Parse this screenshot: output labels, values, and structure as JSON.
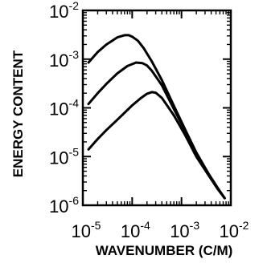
{
  "chart_data": {
    "type": "line",
    "title": "",
    "xlabel": "WAVENUMBER (C/M)",
    "ylabel": "ENERGY CONTENT",
    "xscale": "log",
    "yscale": "log",
    "xlim": [
      1e-05,
      0.01
    ],
    "ylim": [
      1e-06,
      0.01
    ],
    "grid": false,
    "x_ticks": [
      {
        "base": "10",
        "exp": "-5",
        "value": 1e-05
      },
      {
        "base": "10",
        "exp": "-4",
        "value": 0.0001
      },
      {
        "base": "10",
        "exp": "-3",
        "value": 0.001
      },
      {
        "base": "10",
        "exp": "-2",
        "value": 0.01
      }
    ],
    "y_ticks": [
      {
        "base": "10",
        "exp": "-2",
        "value": 0.01
      },
      {
        "base": "10",
        "exp": "-3",
        "value": 0.001
      },
      {
        "base": "10",
        "exp": "-4",
        "value": 0.0001
      },
      {
        "base": "10",
        "exp": "-5",
        "value": 1e-05
      },
      {
        "base": "10",
        "exp": "-6",
        "value": 1e-06
      }
    ],
    "series": [
      {
        "x": [
          1.3e-05,
          2e-05,
          3e-05,
          5e-05,
          7e-05,
          8.5e-05,
          0.0001,
          0.00013,
          0.00017,
          0.00025,
          0.0004,
          0.0007,
          0.0012,
          0.002,
          0.0035,
          0.0055,
          0.0075
        ],
        "y": [
          0.00085,
          0.0014,
          0.002,
          0.0028,
          0.0031,
          0.0031,
          0.0029,
          0.0024,
          0.0017,
          0.0009,
          0.00037,
          0.00011,
          3.5e-05,
          1.2e-05,
          4.5e-06,
          2.2e-06,
          1.4e-06
        ]
      },
      {
        "x": [
          1.3e-05,
          2e-05,
          3e-05,
          5e-05,
          8e-05,
          0.00012,
          0.00016,
          0.0002,
          0.00025,
          0.0004,
          0.0007,
          0.0012,
          0.002,
          0.0035,
          0.0055,
          0.0075
        ],
        "y": [
          0.00012,
          0.0002,
          0.00031,
          0.00051,
          0.00072,
          0.00085,
          0.00083,
          0.00074,
          0.00058,
          0.00029,
          9.5e-05,
          3.3e-05,
          1.2e-05,
          4.5e-06,
          2.2e-06,
          1.4e-06
        ]
      },
      {
        "x": [
          1.3e-05,
          2e-05,
          3e-05,
          5e-05,
          0.0001,
          0.00015,
          0.0002,
          0.00025,
          0.0003,
          0.0004,
          0.0007,
          0.0012,
          0.002,
          0.0035,
          0.0055,
          0.0075
        ],
        "y": [
          1.4e-05,
          2.3e-05,
          3.5e-05,
          5.7e-05,
          0.000112,
          0.000158,
          0.000195,
          0.00021,
          0.000205,
          0.00016,
          7e-05,
          2.7e-05,
          1e-05,
          4.2e-06,
          2.1e-06,
          1.4e-06
        ]
      }
    ]
  }
}
